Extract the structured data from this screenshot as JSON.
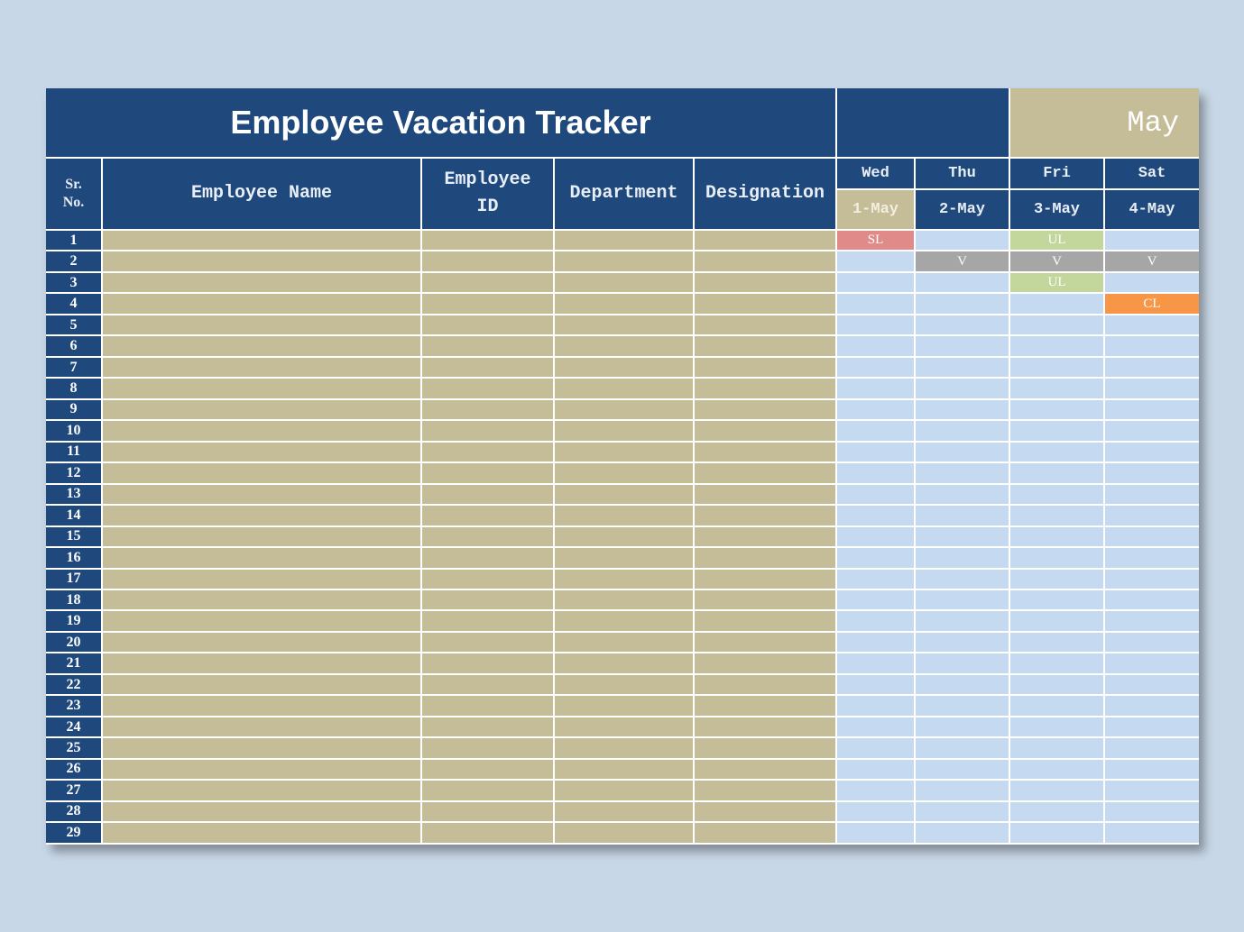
{
  "title": "Employee Vacation Tracker",
  "month": "May",
  "columns": {
    "sr": "Sr.\nNo.",
    "name": "Employee Name",
    "id": "Employee ID",
    "department": "Department",
    "designation": "Designation"
  },
  "days": [
    {
      "weekday": "Wed",
      "date": "1-May"
    },
    {
      "weekday": "Thu",
      "date": "2-May"
    },
    {
      "weekday": "Fri",
      "date": "3-May"
    },
    {
      "weekday": "Sat",
      "date": "4-May"
    }
  ],
  "leave_colors": {
    "SL": "#e08a8a",
    "UL": "#c3d69b",
    "V": "#a6a6a6",
    "CL": "#f79646"
  },
  "colors": {
    "header": "#1f497d",
    "employee_cells": "#c4bd97",
    "day_cells": "#c5d9f1"
  },
  "rows": [
    {
      "sr": "1",
      "leaves": [
        "SL",
        "",
        "UL",
        ""
      ]
    },
    {
      "sr": "2",
      "leaves": [
        "",
        "V",
        "V",
        "V"
      ]
    },
    {
      "sr": "3",
      "leaves": [
        "",
        "",
        "UL",
        ""
      ]
    },
    {
      "sr": "4",
      "leaves": [
        "",
        "",
        "",
        "CL"
      ]
    },
    {
      "sr": "5",
      "leaves": [
        "",
        "",
        "",
        ""
      ]
    },
    {
      "sr": "6",
      "leaves": [
        "",
        "",
        "",
        ""
      ]
    },
    {
      "sr": "7",
      "leaves": [
        "",
        "",
        "",
        ""
      ]
    },
    {
      "sr": "8",
      "leaves": [
        "",
        "",
        "",
        ""
      ]
    },
    {
      "sr": "9",
      "leaves": [
        "",
        "",
        "",
        ""
      ]
    },
    {
      "sr": "10",
      "leaves": [
        "",
        "",
        "",
        ""
      ]
    },
    {
      "sr": "11",
      "leaves": [
        "",
        "",
        "",
        ""
      ]
    },
    {
      "sr": "12",
      "leaves": [
        "",
        "",
        "",
        ""
      ]
    },
    {
      "sr": "13",
      "leaves": [
        "",
        "",
        "",
        ""
      ]
    },
    {
      "sr": "14",
      "leaves": [
        "",
        "",
        "",
        ""
      ]
    },
    {
      "sr": "15",
      "leaves": [
        "",
        "",
        "",
        ""
      ]
    },
    {
      "sr": "16",
      "leaves": [
        "",
        "",
        "",
        ""
      ]
    },
    {
      "sr": "17",
      "leaves": [
        "",
        "",
        "",
        ""
      ]
    },
    {
      "sr": "18",
      "leaves": [
        "",
        "",
        "",
        ""
      ]
    },
    {
      "sr": "19",
      "leaves": [
        "",
        "",
        "",
        ""
      ]
    },
    {
      "sr": "20",
      "leaves": [
        "",
        "",
        "",
        ""
      ]
    },
    {
      "sr": "21",
      "leaves": [
        "",
        "",
        "",
        ""
      ]
    },
    {
      "sr": "22",
      "leaves": [
        "",
        "",
        "",
        ""
      ]
    },
    {
      "sr": "23",
      "leaves": [
        "",
        "",
        "",
        ""
      ]
    },
    {
      "sr": "24",
      "leaves": [
        "",
        "",
        "",
        ""
      ]
    },
    {
      "sr": "25",
      "leaves": [
        "",
        "",
        "",
        ""
      ]
    },
    {
      "sr": "26",
      "leaves": [
        "",
        "",
        "",
        ""
      ]
    },
    {
      "sr": "27",
      "leaves": [
        "",
        "",
        "",
        ""
      ]
    },
    {
      "sr": "28",
      "leaves": [
        "",
        "",
        "",
        ""
      ]
    },
    {
      "sr": "29",
      "leaves": [
        "",
        "",
        "",
        ""
      ]
    }
  ]
}
